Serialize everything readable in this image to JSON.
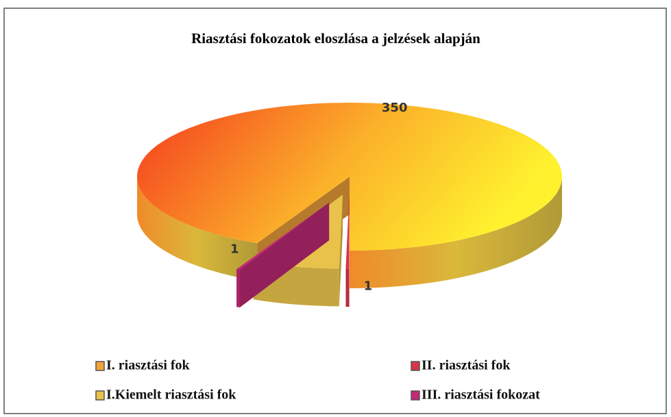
{
  "chart_data": {
    "type": "pie3d",
    "title": "Riasztási fokozatok eloszlása a jelzések alapján",
    "categories": [
      "I. riasztási fok",
      "II. riasztási fok",
      "I.Kiemelt riasztási fok",
      "III.  riasztási fokozat"
    ],
    "values": [
      350,
      1,
      25,
      1
    ],
    "colors": [
      "#f3a33a",
      "#d8344a",
      "#e8c24a",
      "#c42a78"
    ]
  }
}
